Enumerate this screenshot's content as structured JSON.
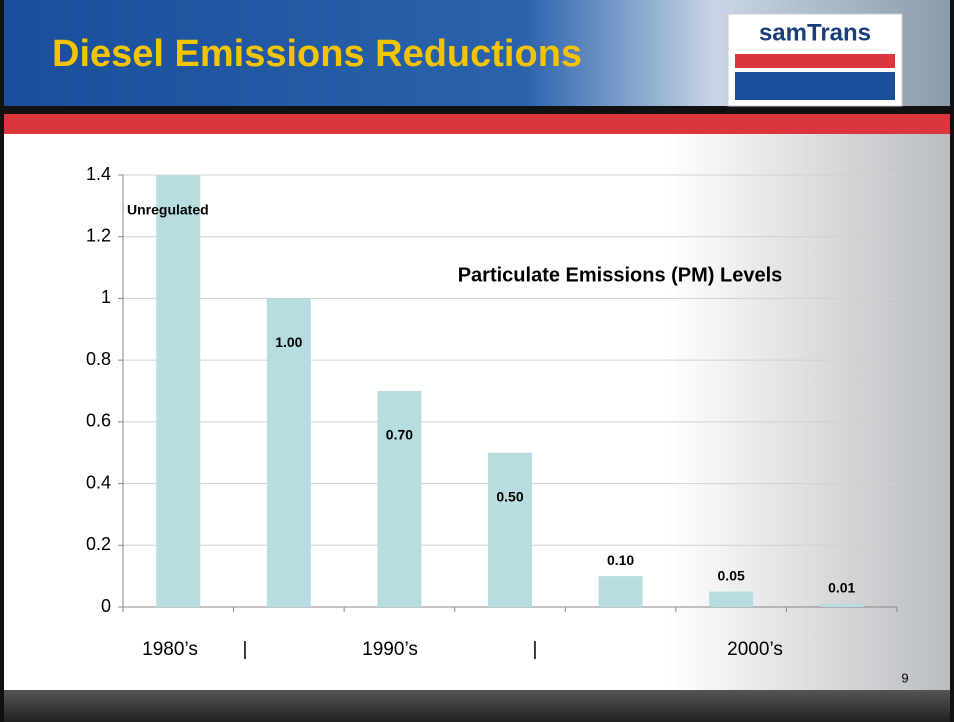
{
  "header": {
    "title": "Diesel Emissions Reductions",
    "logo": "samTrans"
  },
  "page_number": "9",
  "chart_data": {
    "type": "bar",
    "title": "Particulate Emissions (PM) Levels",
    "categories": [
      null,
      null,
      null,
      null,
      null,
      null,
      null
    ],
    "values": [
      1.4,
      1.0,
      0.7,
      0.5,
      0.1,
      0.05,
      0.01
    ],
    "value_labels": [
      null,
      "1.00",
      "0.70",
      "0.50",
      "0.10",
      "0.05",
      "0.01"
    ],
    "annotation": "Unregulated",
    "period_labels": [
      "1980’s",
      "|",
      "1990’s",
      "|",
      "2000’s"
    ],
    "color": "#b7dde0",
    "ylim": [
      0,
      1.4
    ],
    "yticks": [
      0,
      0.2,
      0.4,
      0.6,
      0.8,
      1,
      1.2,
      1.4
    ],
    "grid": true
  }
}
